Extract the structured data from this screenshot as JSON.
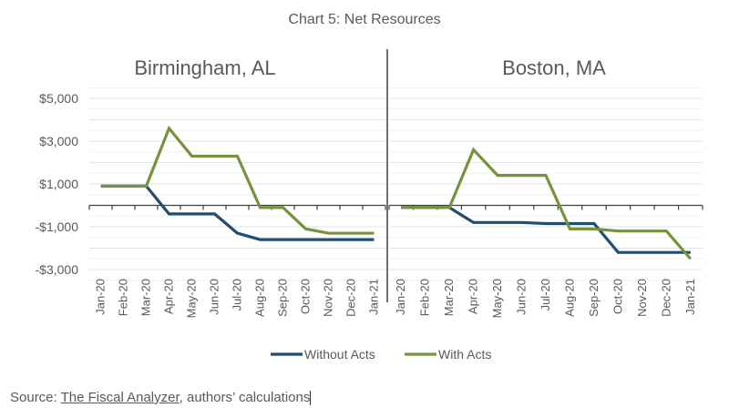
{
  "chart_data": {
    "type": "line",
    "title": "Chart 5: Net Resources",
    "ylabel": "",
    "xlabel": "",
    "ylim": [
      -3500,
      5500
    ],
    "yticks": [
      5000,
      3000,
      1000,
      -1000,
      -3000
    ],
    "ytick_labels": [
      "$5,000",
      "$3,000",
      "$1,000",
      "-$1,000",
      "-$3,000"
    ],
    "grid": true,
    "legend_position": "bottom",
    "categories": [
      "Jan-20",
      "Feb-20",
      "Mar-20",
      "Apr-20",
      "May-20",
      "Jun-20",
      "Jul-20",
      "Aug-20",
      "Sep-20",
      "Oct-20",
      "Nov-20",
      "Dec-20",
      "Jan-21"
    ],
    "panels": [
      {
        "title": "Birmingham, AL",
        "series": [
          {
            "name": "Without Acts",
            "color": "#1f4e6e",
            "values": [
              900,
              900,
              900,
              -400,
              -400,
              -400,
              -1300,
              -1600,
              -1600,
              -1600,
              -1600,
              -1600,
              -1600
            ]
          },
          {
            "name": "With Acts",
            "color": "#76933c",
            "values": [
              900,
              900,
              900,
              3600,
              2300,
              2300,
              2300,
              -100,
              -100,
              -1100,
              -1300,
              -1300,
              -1300
            ]
          }
        ]
      },
      {
        "title": "Boston, MA",
        "series": [
          {
            "name": "Without Acts",
            "color": "#1f4e6e",
            "values": [
              -100,
              -100,
              -100,
              -800,
              -800,
              -800,
              -850,
              -850,
              -850,
              -2200,
              -2200,
              -2200,
              -2200
            ]
          },
          {
            "name": "With Acts",
            "color": "#76933c",
            "values": [
              -100,
              -100,
              -100,
              2600,
              1400,
              1400,
              1400,
              -1100,
              -1100,
              -1200,
              -1200,
              -1200,
              -2500
            ]
          }
        ]
      }
    ],
    "legend": [
      {
        "label": "Without Acts",
        "color": "#1f4e6e"
      },
      {
        "label": "With Acts",
        "color": "#76933c"
      }
    ]
  },
  "source": {
    "prefix": "Source: ",
    "link_text": "The Fiscal Analyzer",
    "suffix": ", authors’ calculations"
  }
}
